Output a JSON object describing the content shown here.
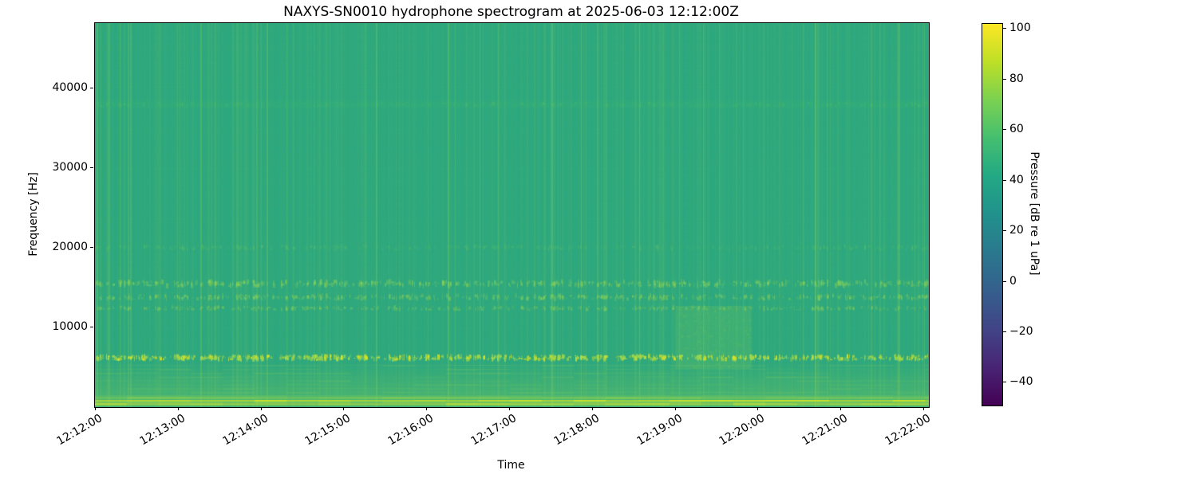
{
  "chart_data": {
    "type": "heatmap",
    "subtype": "spectrogram",
    "title": "NAXYS-SN0010 hydrophone spectrogram at 2025-06-03 12:12:00Z",
    "xlabel": "Time",
    "ylabel": "Frequency [Hz]",
    "x_tick_labels": [
      "12:12:00",
      "12:13:00",
      "12:14:00",
      "12:15:00",
      "12:16:00",
      "12:17:00",
      "12:18:00",
      "12:19:00",
      "12:20:00",
      "12:21:00",
      "12:22:00"
    ],
    "y_ticks": [
      {
        "label": "10000",
        "value_hz": 10000
      },
      {
        "label": "20000",
        "value_hz": 20000
      },
      {
        "label": "30000",
        "value_hz": 30000
      },
      {
        "label": "40000",
        "value_hz": 40000
      }
    ],
    "y_range_hz": [
      0,
      48200
    ],
    "grid": false,
    "colorbar": {
      "label": "Pressure [dB re 1 uPa]",
      "colormap": "viridis",
      "range_db": [
        -49,
        102
      ],
      "ticks": [
        {
          "label": "100",
          "value": 100
        },
        {
          "label": "80",
          "value": 80
        },
        {
          "label": "60",
          "value": 60
        },
        {
          "label": "40",
          "value": 40
        },
        {
          "label": "20",
          "value": 20
        },
        {
          "label": "0",
          "value": 0
        },
        {
          "label": "−20",
          "value": -20
        },
        {
          "label": "−40",
          "value": -40
        }
      ]
    },
    "features": [
      {
        "name": "background",
        "freq_range_hz": [
          0,
          48200
        ],
        "level_db": "≈42",
        "description": "uniform teal-green ambient background"
      },
      {
        "name": "broadband-click-streaks",
        "freq_range_hz": [
          0,
          48200
        ],
        "level_db": "48–58",
        "description": "many faint vertical lines (impulsive broadband events) throughout the record"
      },
      {
        "name": "tonal-band-6.2kHz",
        "freq_range_hz": [
          5800,
          6700
        ],
        "level_db": "75–95",
        "description": "bright dotted yellow-green band"
      },
      {
        "name": "speckled-bands-12-16kHz",
        "freq_range_hz": [
          12000,
          16000
        ],
        "level_db": "60–72",
        "description": "three speckled bands near 12.4, 13.8 and 15.5 kHz"
      },
      {
        "name": "speckled-band-20kHz",
        "freq_range_hz": [
          19500,
          20500
        ],
        "level_db": "≈55",
        "description": "faint speckled band"
      },
      {
        "name": "faint-band-38kHz",
        "freq_range_hz": [
          37500,
          38500
        ],
        "level_db": "≈47",
        "description": "very faint continuous lighter band"
      },
      {
        "name": "low-frequency-wash",
        "freq_range_hz": [
          0,
          5600
        ],
        "level_db": "50–65",
        "description": "lighter striated region near bottom"
      },
      {
        "name": "bottom-strip",
        "freq_range_hz": [
          0,
          1600
        ],
        "level_db": "75–88",
        "description": "bright yellow-green strip along bottom edge"
      },
      {
        "name": "event-12:19",
        "time_range": [
          "12:19:00",
          "12:19:55"
        ],
        "freq_range_hz": [
          4800,
          12700
        ],
        "level_db": "55–62",
        "description": "brighter broadband patch between 12:19 and 12:20"
      }
    ],
    "render": {
      "seed": 42,
      "f_max": 48200,
      "base": "#2ba780",
      "streak_color": "#8fd455",
      "col_noise_alpha": 0.06,
      "row_noise_alpha": 0.025,
      "streak_count": 260,
      "streak_alpha": [
        0.02,
        0.13
      ],
      "prominent_streaks": [
        0.002,
        0.016,
        0.03,
        0.042,
        0.126,
        0.206,
        0.323,
        0.337,
        0.423,
        0.432,
        0.461,
        0.547,
        0.583,
        0.633,
        0.653,
        0.7,
        0.729,
        0.748,
        0.777,
        0.863,
        0.964,
        0.983,
        0.994
      ],
      "h_bands": [
        {
          "freq_hz": 38000,
          "type": "wash",
          "half": 4,
          "color": "#49c06e",
          "alpha": 0.1
        },
        {
          "freq_hz": 38000,
          "type": "speckle",
          "half": 4,
          "color": "#6cc95e",
          "alpha_lo": 0.04,
          "alpha_hi": 0.14,
          "density": 0.5
        },
        {
          "freq_hz": 20000,
          "type": "speckle",
          "half": 5,
          "color": "#6cc95e",
          "alpha_lo": 0.06,
          "alpha_hi": 0.22,
          "density": 0.5
        },
        {
          "freq_hz": 15500,
          "type": "speckle",
          "half": 6,
          "color": "#8fd455",
          "alpha_lo": 0.1,
          "alpha_hi": 0.45,
          "density": 0.9
        },
        {
          "freq_hz": 13800,
          "type": "speckle",
          "half": 5,
          "color": "#8fd455",
          "alpha_lo": 0.1,
          "alpha_hi": 0.4,
          "density": 0.8
        },
        {
          "freq_hz": 12400,
          "type": "speckle",
          "half": 4,
          "color": "#8fd455",
          "alpha_lo": 0.08,
          "alpha_hi": 0.35,
          "density": 0.7
        },
        {
          "freq_hz": 6200,
          "type": "dots",
          "half": 5,
          "color": "#9fd74d",
          "bright_color": "#e0e61f",
          "alpha_lo": 0.25,
          "alpha_hi": 0.85,
          "density": 1.2
        }
      ],
      "low_wash": {
        "freq_top_hz": 5600,
        "color": "#7cc95b",
        "alpha_max": 0.3,
        "striation_count": 8,
        "striation_alpha": 0.22
      },
      "bottom_strip": [
        {
          "off": 13,
          "h": 2,
          "color": "#63c263",
          "alpha": 0.45
        },
        {
          "off": 10,
          "h": 3,
          "color": "#8fd24e",
          "alpha": 0.55
        },
        {
          "off": 7,
          "h": 2,
          "color": "#c6e22c",
          "alpha": 0.85
        },
        {
          "off": 5,
          "h": 2,
          "color": "#9ad54a",
          "alpha": 0.55
        },
        {
          "off": 2,
          "h": 3,
          "color": "#b4dc3a",
          "alpha": 0.7
        }
      ],
      "blob": {
        "x0": 0.696,
        "x1": 0.787,
        "f_top_hz": 12700,
        "f_bottom_hz": 4800,
        "color": "#82cc56",
        "alpha": 0.2,
        "speckles": 260,
        "speckle_alpha": 0.22
      }
    }
  }
}
